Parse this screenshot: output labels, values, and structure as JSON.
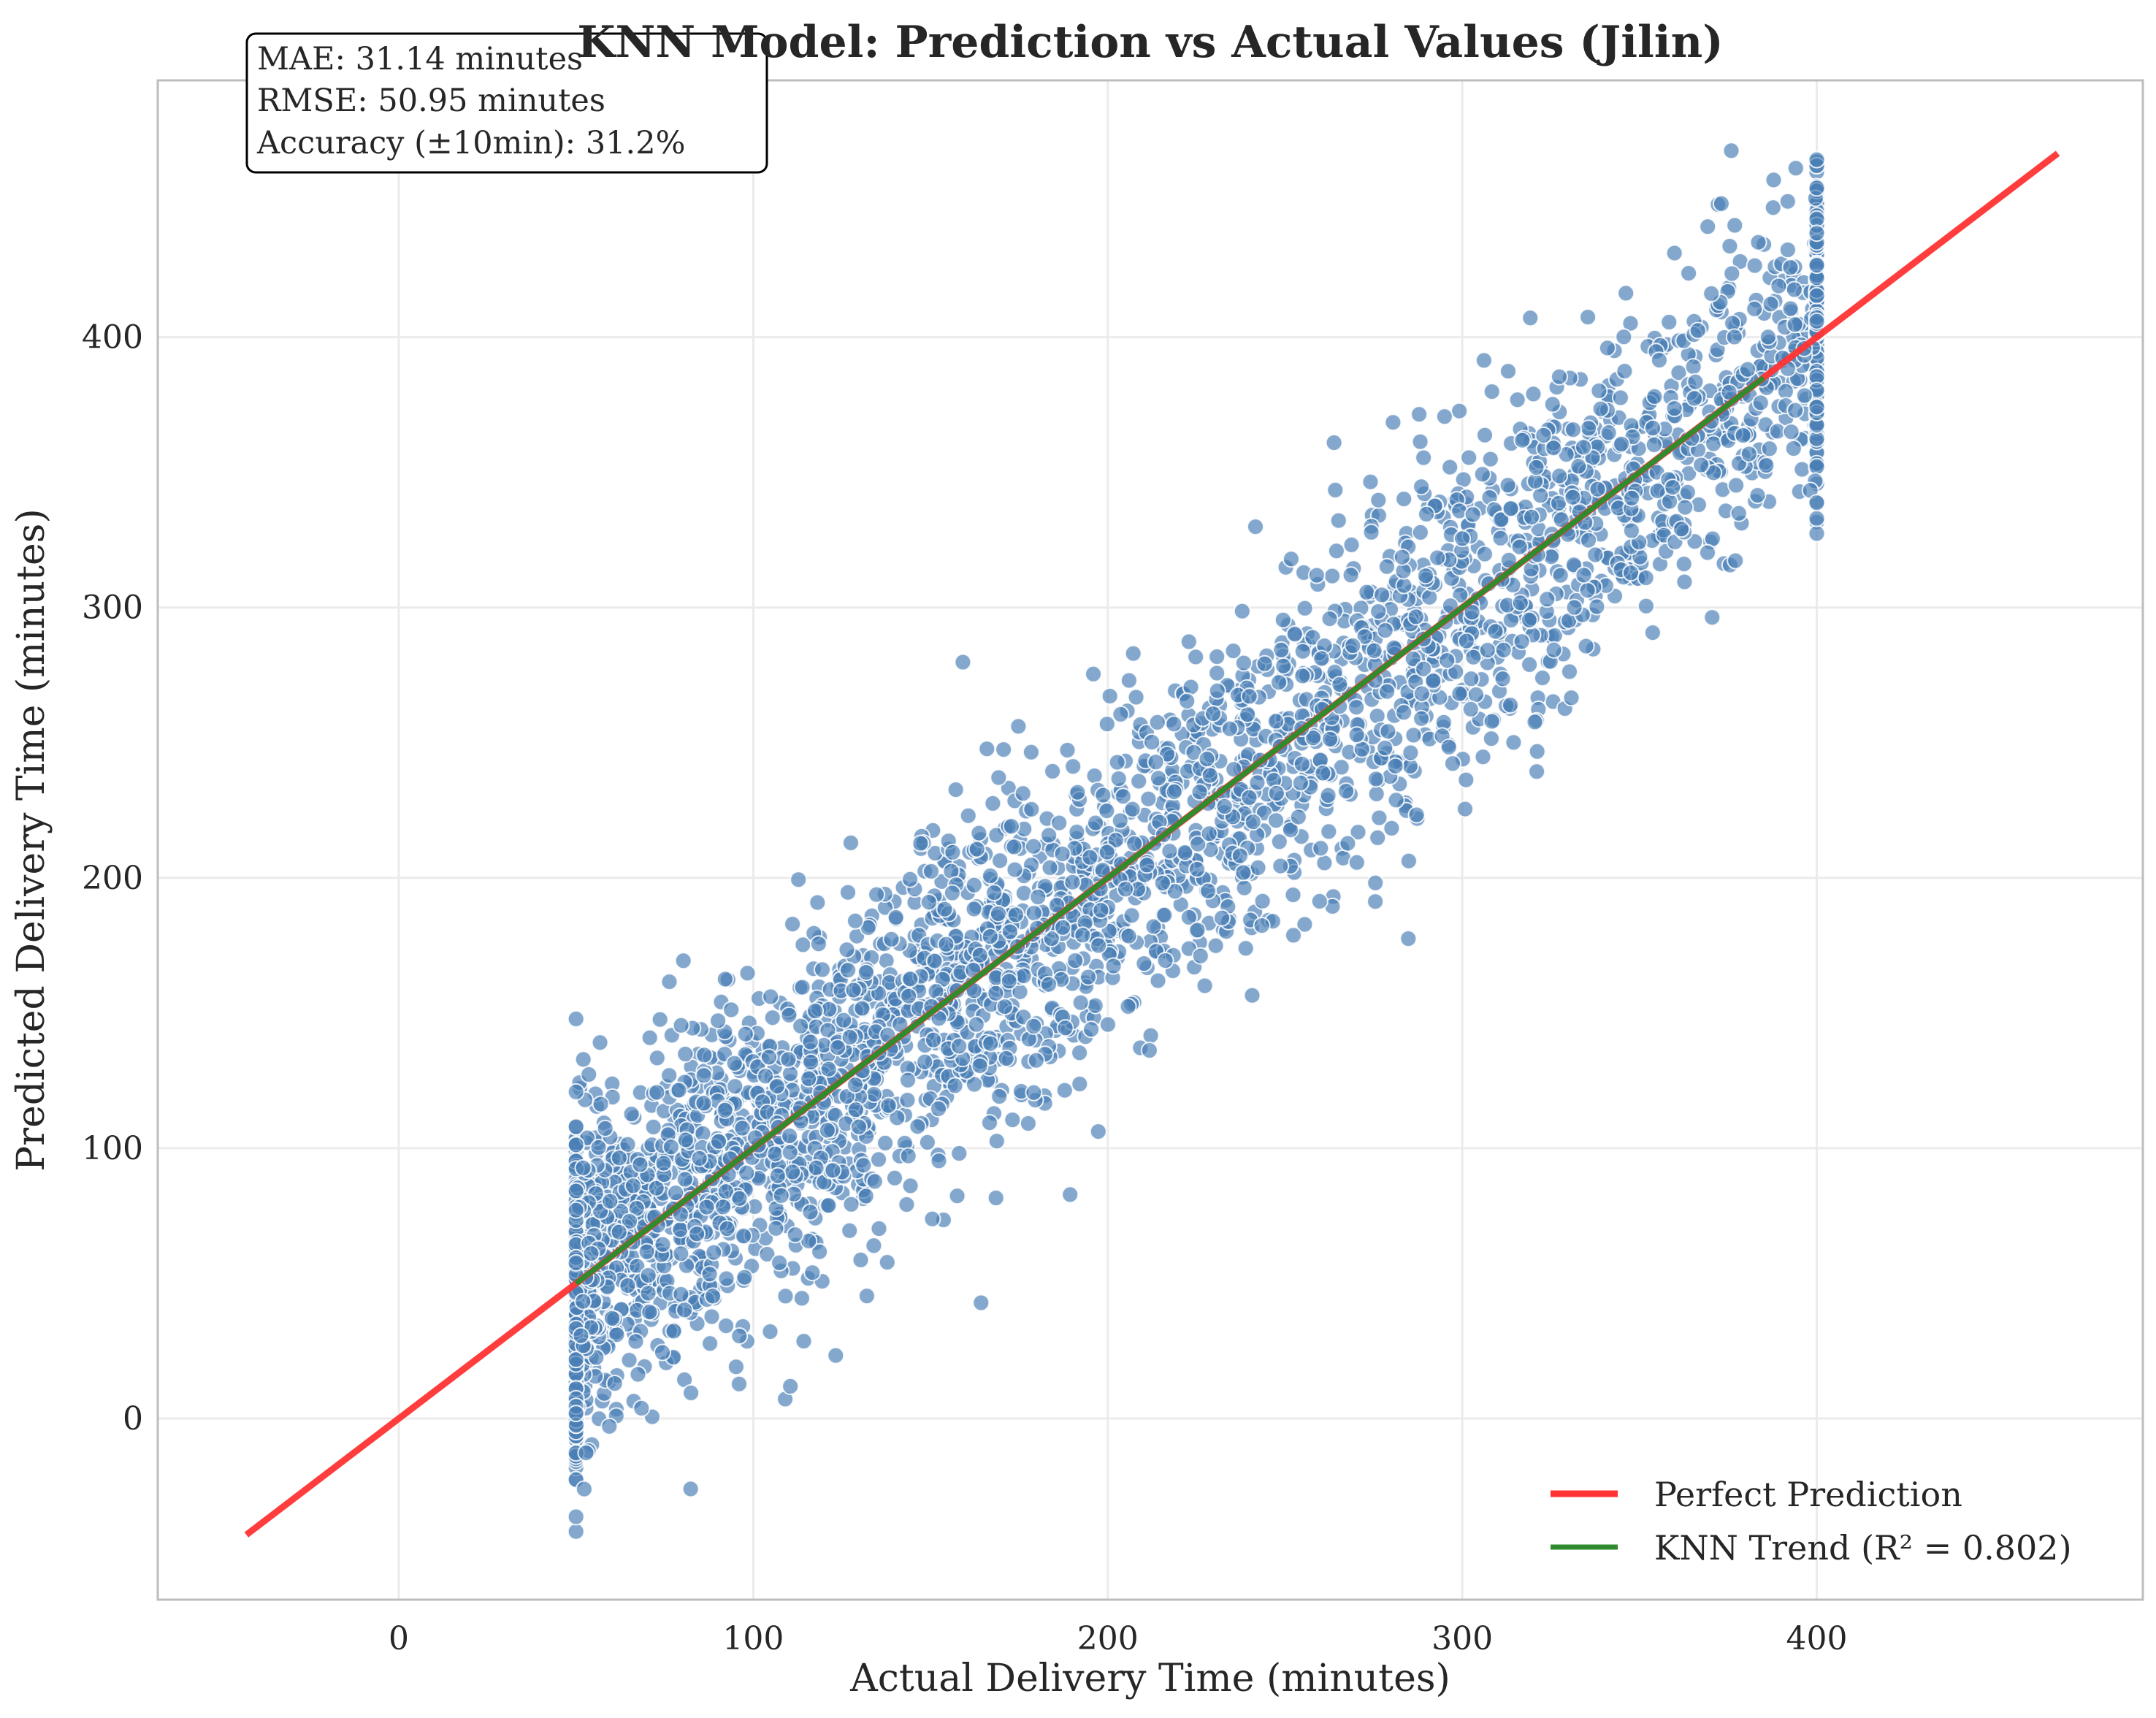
{
  "chart_data": {
    "type": "scatter",
    "title": "KNN Model: Prediction vs Actual Values (Jilin)",
    "xlabel": "Actual Delivery Time (minutes)",
    "ylabel": "Predicted Delivery Time (minutes)",
    "xlim": [
      -68,
      492
    ],
    "ylim": [
      -67,
      495
    ],
    "xticks": [
      0,
      100,
      200,
      300,
      400
    ],
    "yticks": [
      0,
      100,
      200,
      300,
      400
    ],
    "grid": true,
    "legend_position": "lower-right",
    "metrics": [
      "MAE: 31.14 minutes",
      "RMSE: 50.95 minutes",
      "Accuracy (±10min): 31.2%"
    ],
    "series": [
      {
        "name": "Perfect Prediction",
        "kind": "line",
        "color": "#ff3333",
        "x": [
          -43,
          468
        ],
        "y": [
          -43,
          468
        ]
      },
      {
        "name": "KNN Trend (R² = 0.802)",
        "kind": "line",
        "color": "#2e8b2e",
        "x": [
          50,
          385
        ],
        "y": [
          50,
          385
        ]
      },
      {
        "name": "Predictions",
        "kind": "scatter",
        "color": "#4a7fb5",
        "x_range": [
          50,
          400
        ],
        "y_range": [
          -43,
          469
        ],
        "points_approx": 3500
      }
    ]
  }
}
